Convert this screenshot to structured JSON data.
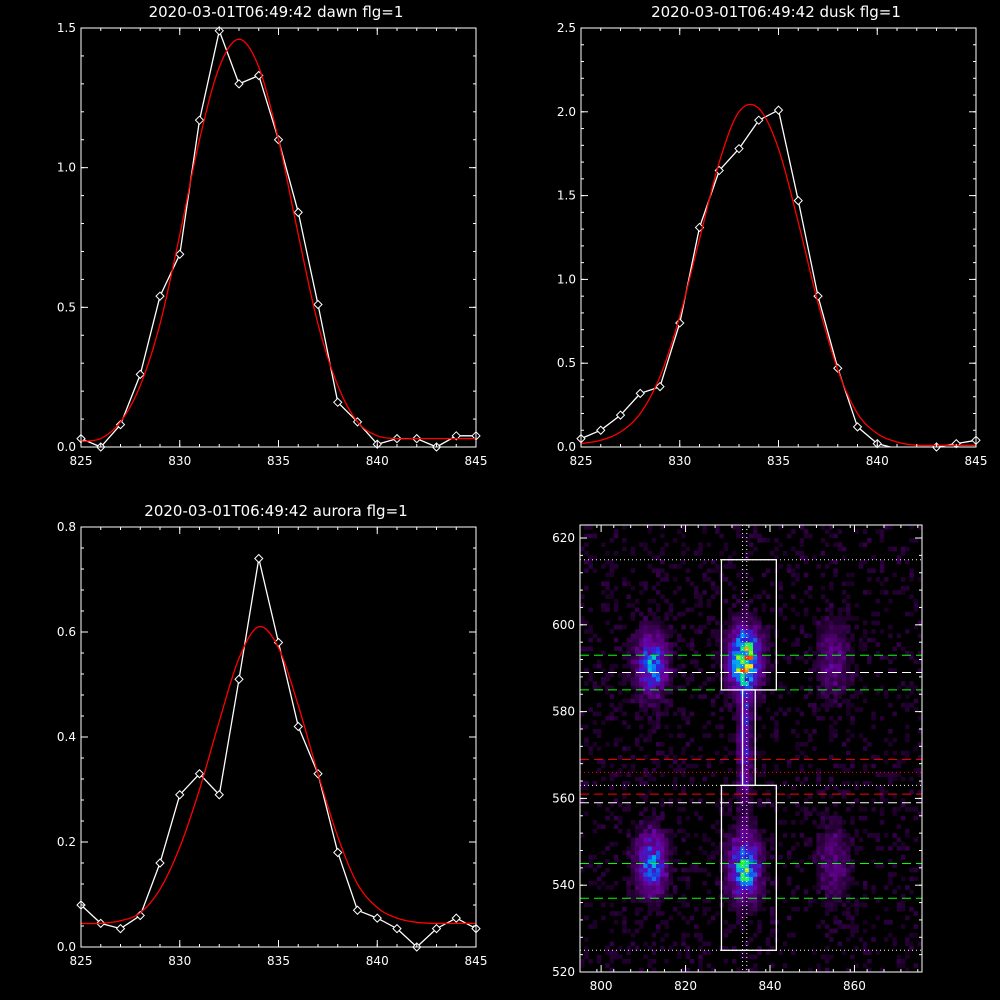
{
  "colors": {
    "background": "#000000",
    "data": "#ffffff",
    "fit": "#ff0000",
    "green_line": "#00ff00",
    "red_line": "#ff0000",
    "white_line": "#ffffff"
  },
  "chart_data": [
    {
      "type": "line",
      "title": "2020-03-01T06:49:42 dawn flg=1",
      "xlim": [
        825,
        845
      ],
      "ylim": [
        0,
        1.5
      ],
      "xticks": [
        "825",
        "830",
        "835",
        "840",
        "845"
      ],
      "yticks": [
        "0.0",
        "0.5",
        "1.0",
        "1.5"
      ],
      "x": [
        825,
        826,
        827,
        828,
        829,
        830,
        831,
        832,
        833,
        834,
        835,
        836,
        837,
        838,
        839,
        840,
        841,
        842,
        843,
        844,
        845
      ],
      "series": [
        {
          "values": [
            0.03,
            0.0,
            0.08,
            0.26,
            0.54,
            0.69,
            1.17,
            1.49,
            1.3,
            1.33,
            1.1,
            0.84,
            0.51,
            0.16,
            0.09,
            0.01,
            0.03,
            0.03,
            0.0,
            0.04,
            0.04
          ],
          "markers": true
        },
        {
          "values": [
            0.02,
            0.03,
            0.09,
            0.22,
            0.44,
            0.76,
            1.1,
            1.36,
            1.46,
            1.36,
            1.1,
            0.76,
            0.44,
            0.22,
            0.09,
            0.04,
            0.03,
            0.03,
            0.03,
            0.03,
            0.03
          ],
          "markers": false
        }
      ]
    },
    {
      "type": "line",
      "title": "2020-03-01T06:49:42 dusk flg=1",
      "xlim": [
        825,
        845
      ],
      "ylim": [
        0,
        2.5
      ],
      "xticks": [
        "825",
        "830",
        "835",
        "840",
        "845"
      ],
      "yticks": [
        "0.0",
        "0.5",
        "1.0",
        "1.5",
        "2.0",
        "2.5"
      ],
      "x": [
        825,
        826,
        827,
        828,
        829,
        830,
        831,
        832,
        833,
        834,
        835,
        836,
        837,
        838,
        839,
        840,
        841,
        842,
        843,
        844,
        845
      ],
      "series": [
        {
          "values": [
            0.05,
            0.1,
            0.19,
            0.32,
            0.36,
            0.74,
            1.31,
            1.65,
            1.78,
            1.95,
            2.01,
            1.47,
            0.9,
            0.47,
            0.12,
            0.02,
            -0.01,
            -0.01,
            0.0,
            0.02,
            0.04
          ],
          "markers": true
        },
        {
          "values": [
            0.02,
            0.04,
            0.09,
            0.2,
            0.42,
            0.78,
            1.24,
            1.7,
            2.0,
            2.02,
            1.78,
            1.34,
            0.86,
            0.46,
            0.2,
            0.08,
            0.03,
            0.01,
            0.01,
            0.01,
            0.01
          ],
          "markers": false
        }
      ]
    },
    {
      "type": "line",
      "title": "2020-03-01T06:49:42 aurora flg=1",
      "xlim": [
        825,
        845
      ],
      "ylim": [
        0,
        0.8
      ],
      "xticks": [
        "825",
        "830",
        "835",
        "840",
        "845"
      ],
      "yticks": [
        "0.0",
        "0.2",
        "0.4",
        "0.6",
        "0.8"
      ],
      "x": [
        825,
        826,
        827,
        828,
        829,
        830,
        831,
        832,
        833,
        834,
        835,
        836,
        837,
        838,
        839,
        840,
        841,
        842,
        843,
        844,
        845
      ],
      "series": [
        {
          "values": [
            0.08,
            0.045,
            0.035,
            0.06,
            0.16,
            0.29,
            0.33,
            0.29,
            0.51,
            0.74,
            0.58,
            0.42,
            0.33,
            0.18,
            0.07,
            0.055,
            0.035,
            0.0,
            0.035,
            0.055,
            0.035
          ],
          "markers": true
        },
        {
          "values": [
            0.045,
            0.045,
            0.05,
            0.065,
            0.11,
            0.19,
            0.3,
            0.43,
            0.55,
            0.61,
            0.57,
            0.46,
            0.33,
            0.21,
            0.12,
            0.075,
            0.055,
            0.047,
            0.045,
            0.045,
            0.045
          ],
          "markers": false
        }
      ]
    },
    {
      "type": "heatmap",
      "xlim": [
        795,
        876
      ],
      "ylim": [
        520,
        623
      ],
      "xticks": [
        "800",
        "820",
        "840",
        "860"
      ],
      "yticks": [
        "520",
        "540",
        "560",
        "580",
        "600",
        "620"
      ],
      "spots": [
        {
          "x": 812,
          "y": 591,
          "sx": 2.5,
          "sy": 5,
          "amp": 0.6
        },
        {
          "x": 812,
          "y": 545,
          "sx": 2.5,
          "sy": 5,
          "amp": 0.6
        },
        {
          "x": 834,
          "y": 592,
          "sx": 2.5,
          "sy": 5,
          "amp": 1.0
        },
        {
          "x": 834,
          "y": 544,
          "sx": 2.5,
          "sy": 5,
          "amp": 0.75
        },
        {
          "x": 834,
          "y": 571,
          "sx": 1.0,
          "sy": 9,
          "amp": 0.45
        },
        {
          "x": 855,
          "y": 592,
          "sx": 2.5,
          "sy": 6,
          "amp": 0.25
        },
        {
          "x": 855,
          "y": 545,
          "sx": 2.5,
          "sy": 6,
          "amp": 0.25
        }
      ],
      "boxes": [
        {
          "x0": 828.5,
          "x1": 841.5,
          "y0": 585,
          "y1": 615
        },
        {
          "x0": 828.5,
          "x1": 841.5,
          "y0": 525,
          "y1": 563
        },
        {
          "x0": 833.5,
          "x1": 836.5,
          "y0": 563,
          "y1": 585
        }
      ],
      "hlines": [
        {
          "y": 615,
          "style": "dotted",
          "color": "#ffffff"
        },
        {
          "y": 593,
          "style": "dashed",
          "color": "#00ff00"
        },
        {
          "y": 589,
          "style": "dashed",
          "color": "#ffffff"
        },
        {
          "y": 585,
          "style": "dashed",
          "color": "#00ff00"
        },
        {
          "y": 569,
          "style": "dashed",
          "color": "#ff0000"
        },
        {
          "y": 566,
          "style": "dotted",
          "color": "#ff0000"
        },
        {
          "y": 563,
          "style": "dotted",
          "color": "#ffffff"
        },
        {
          "y": 561,
          "style": "dashed",
          "color": "#ff0000"
        },
        {
          "y": 559,
          "style": "dashed",
          "color": "#ffffff"
        },
        {
          "y": 545,
          "style": "dashed",
          "color": "#00ff00"
        },
        {
          "y": 537,
          "style": "dashed",
          "color": "#00ff00"
        },
        {
          "y": 525,
          "style": "dotted",
          "color": "#ffffff"
        }
      ],
      "vlines": [
        {
          "x": 833.5,
          "style": "dotted",
          "color": "#ffffff"
        },
        {
          "x": 834.5,
          "style": "dotted",
          "color": "#ffffff"
        }
      ]
    }
  ]
}
